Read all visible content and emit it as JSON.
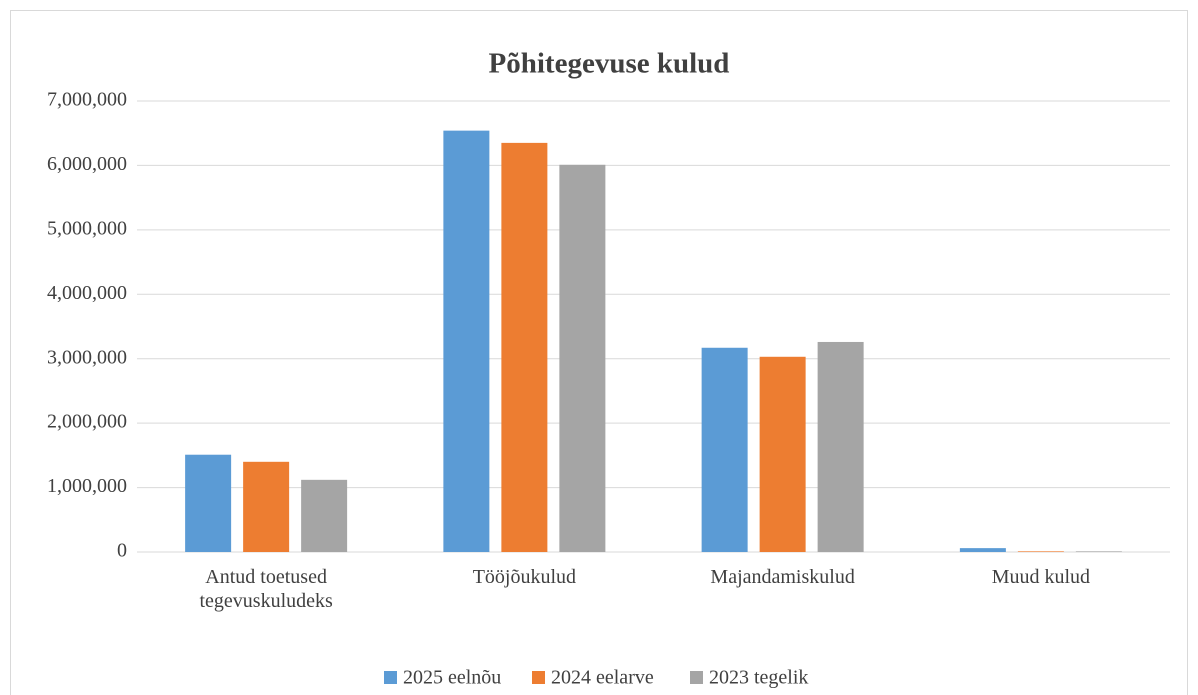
{
  "chart_data": {
    "type": "bar",
    "title": "Põhitegevuse kulud",
    "categories": [
      "Antud toetused tegevuskuludeks",
      "Tööjõukulud",
      "Majandamiskulud",
      "Muud kulud"
    ],
    "series": [
      {
        "name": "2025 eelnõu",
        "color": "#5b9bd5",
        "values": [
          1510000,
          6540000,
          3170000,
          60000
        ]
      },
      {
        "name": "2024 eelarve",
        "color": "#ed7d31",
        "values": [
          1400000,
          6350000,
          3030000,
          10000
        ]
      },
      {
        "name": "2023 tegelik",
        "color": "#a5a5a5",
        "values": [
          1120000,
          6010000,
          3260000,
          10000
        ]
      }
    ],
    "ylim": [
      0,
      7000000
    ],
    "yticks": [
      0,
      {
        "value": 1000000,
        "label": "1,000,000"
      },
      {
        "value": 2000000,
        "label": "2,000,000"
      },
      {
        "value": 3000000,
        "label": "3,000,000"
      },
      {
        "value": 4000000,
        "label": "4,000,000"
      },
      {
        "value": 5000000,
        "label": "5,000,000"
      },
      {
        "value": 6000000,
        "label": "6,000,000"
      },
      {
        "value": 7000000,
        "label": "7,000,000"
      }
    ],
    "grid": true,
    "legend": "bottom"
  }
}
